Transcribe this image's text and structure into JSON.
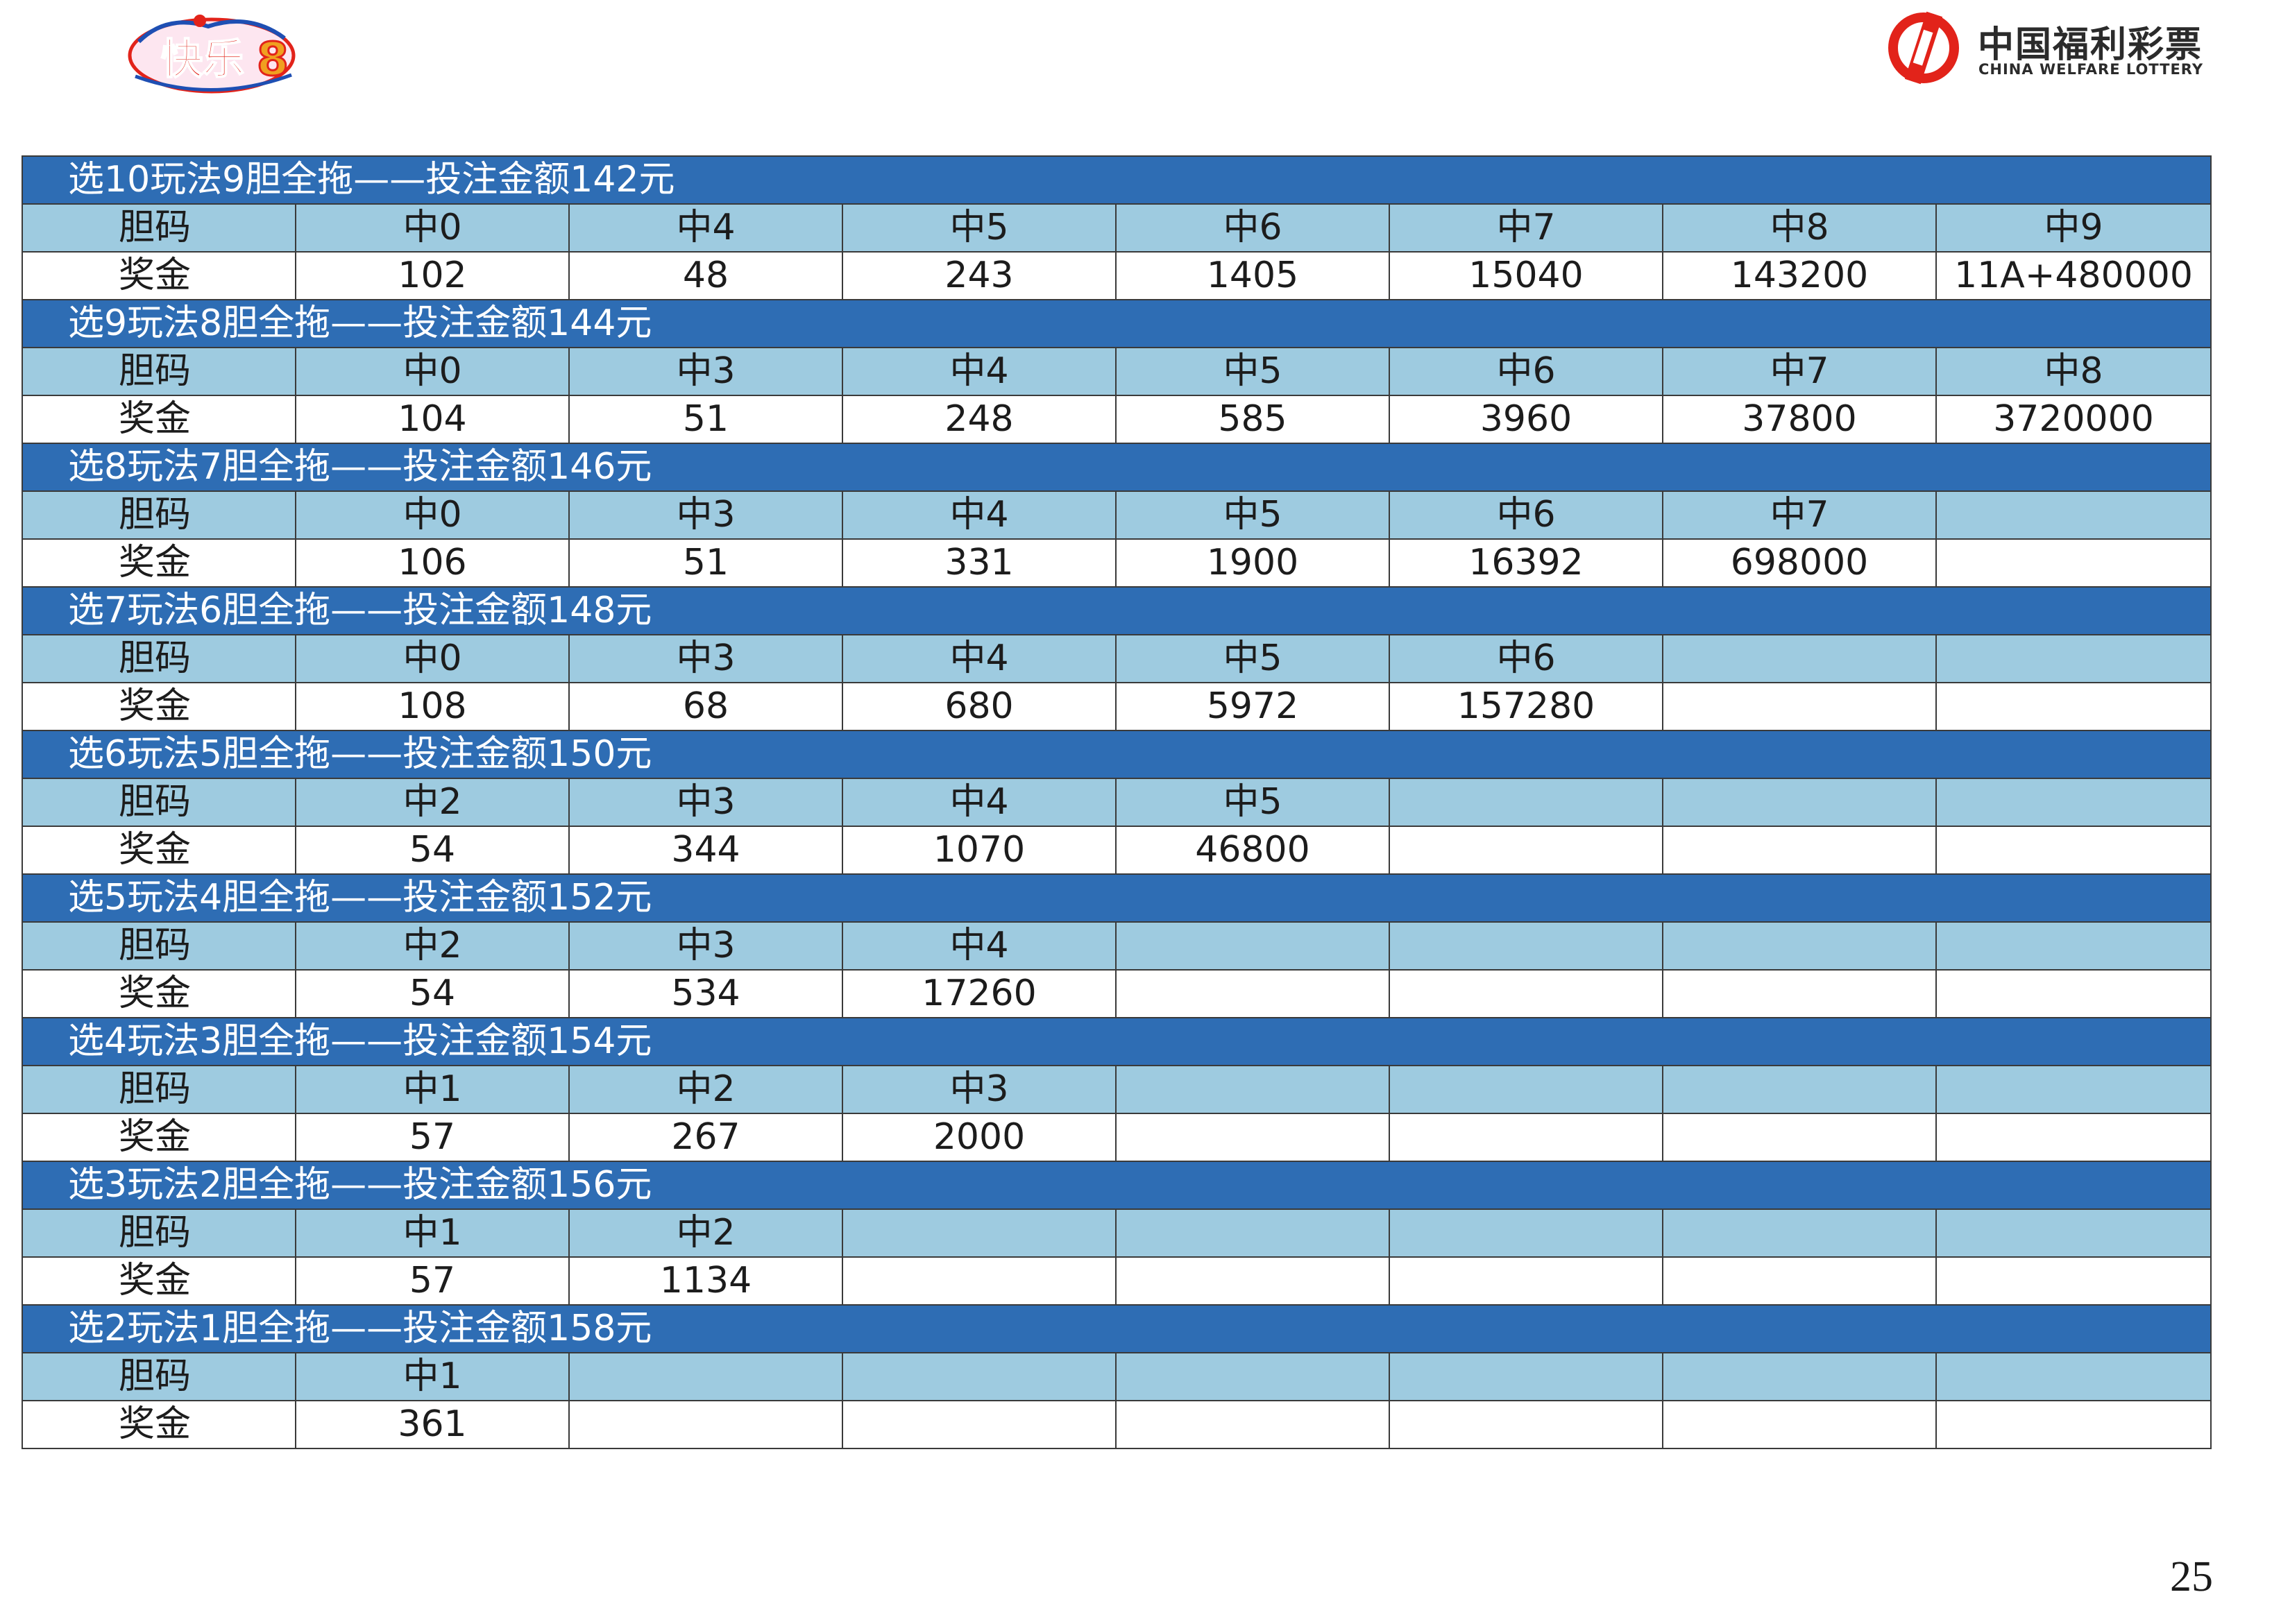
{
  "header": {
    "brand_name_cn": "中国福利彩票",
    "brand_name_en": "CHINA WELFARE LOTTERY",
    "game_logo_text": "快乐8",
    "colors": {
      "brand_red": "#e2231a",
      "title_bar": "#2e6db4",
      "hit_row": "#9ecbe0"
    }
  },
  "row_labels": {
    "banker": "胆码",
    "prize": "奖金"
  },
  "sections": [
    {
      "title": "选10玩法9胆全拖——投注金额142元",
      "hits": [
        "中0",
        "中4",
        "中5",
        "中6",
        "中7",
        "中8",
        "中9"
      ],
      "prizes": [
        "102",
        "48",
        "243",
        "1405",
        "15040",
        "143200",
        "11A+480000"
      ]
    },
    {
      "title": "选9玩法8胆全拖——投注金额144元",
      "hits": [
        "中0",
        "中3",
        "中4",
        "中5",
        "中6",
        "中7",
        "中8"
      ],
      "prizes": [
        "104",
        "51",
        "248",
        "585",
        "3960",
        "37800",
        "3720000"
      ]
    },
    {
      "title": "选8玩法7胆全拖——投注金额146元",
      "hits": [
        "中0",
        "中3",
        "中4",
        "中5",
        "中6",
        "中7",
        ""
      ],
      "prizes": [
        "106",
        "51",
        "331",
        "1900",
        "16392",
        "698000",
        ""
      ]
    },
    {
      "title": "选7玩法6胆全拖——投注金额148元",
      "hits": [
        "中0",
        "中3",
        "中4",
        "中5",
        "中6",
        "",
        ""
      ],
      "prizes": [
        "108",
        "68",
        "680",
        "5972",
        "157280",
        "",
        ""
      ]
    },
    {
      "title": "选6玩法5胆全拖——投注金额150元",
      "hits": [
        "中2",
        "中3",
        "中4",
        "中5",
        "",
        "",
        ""
      ],
      "prizes": [
        "54",
        "344",
        "1070",
        "46800",
        "",
        "",
        ""
      ]
    },
    {
      "title": "选5玩法4胆全拖——投注金额152元",
      "hits": [
        "中2",
        "中3",
        "中4",
        "",
        "",
        "",
        ""
      ],
      "prizes": [
        "54",
        "534",
        "17260",
        "",
        "",
        "",
        ""
      ]
    },
    {
      "title": "选4玩法3胆全拖——投注金额154元",
      "hits": [
        "中1",
        "中2",
        "中3",
        "",
        "",
        "",
        ""
      ],
      "prizes": [
        "57",
        "267",
        "2000",
        "",
        "",
        "",
        ""
      ]
    },
    {
      "title": "选3玩法2胆全拖——投注金额156元",
      "hits": [
        "中1",
        "中2",
        "",
        "",
        "",
        "",
        ""
      ],
      "prizes": [
        "57",
        "1134",
        "",
        "",
        "",
        "",
        ""
      ]
    },
    {
      "title": "选2玩法1胆全拖——投注金额158元",
      "hits": [
        "中1",
        "",
        "",
        "",
        "",
        "",
        ""
      ],
      "prizes": [
        "361",
        "",
        "",
        "",
        "",
        "",
        ""
      ]
    }
  ],
  "footer": {
    "page_number": "25"
  }
}
